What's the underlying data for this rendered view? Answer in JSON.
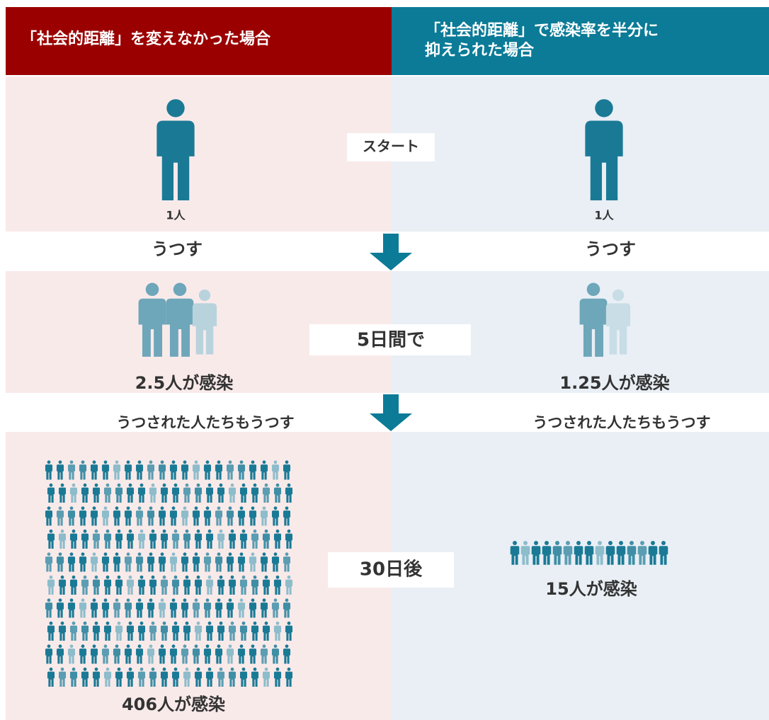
{
  "header": {
    "left": "「社会的距離」を変えなかった場合",
    "right": [
      "「社会的距離」で感染率を半分に",
      "抑えられた場合"
    ]
  },
  "start": {
    "label": "スタート",
    "left_count": "1人",
    "right_count": "1人"
  },
  "transmit": {
    "left": "うつす",
    "right": "うつす"
  },
  "day5": {
    "label": "5日間で",
    "left": "2.5人が感染",
    "right": "1.25人が感染"
  },
  "transmit2": {
    "left": "うつされた人たちもうつす",
    "right": "うつされた人たちもうつす"
  },
  "day30": {
    "label": "30日後",
    "left": "406人が感染",
    "right": "15人が感染"
  }
}
